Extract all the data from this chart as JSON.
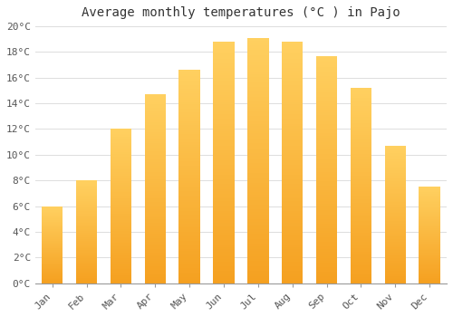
{
  "months": [
    "Jan",
    "Feb",
    "Mar",
    "Apr",
    "May",
    "Jun",
    "Jul",
    "Aug",
    "Sep",
    "Oct",
    "Nov",
    "Dec"
  ],
  "values": [
    6.0,
    8.0,
    12.0,
    14.7,
    16.6,
    18.8,
    19.1,
    18.8,
    17.7,
    15.2,
    10.7,
    7.5
  ],
  "bar_color_bottom": "#F5A623",
  "bar_color_top": "#FFD060",
  "title": "Average monthly temperatures (°C ) in Pajo",
  "ylim": [
    0,
    20
  ],
  "yticks": [
    0,
    2,
    4,
    6,
    8,
    10,
    12,
    14,
    16,
    18,
    20
  ],
  "ytick_labels": [
    "0°C",
    "2°C",
    "4°C",
    "6°C",
    "8°C",
    "10°C",
    "12°C",
    "14°C",
    "16°C",
    "18°C",
    "20°C"
  ],
  "background_color": "#FFFFFF",
  "grid_color": "#DDDDDD",
  "title_fontsize": 10,
  "tick_fontsize": 8
}
